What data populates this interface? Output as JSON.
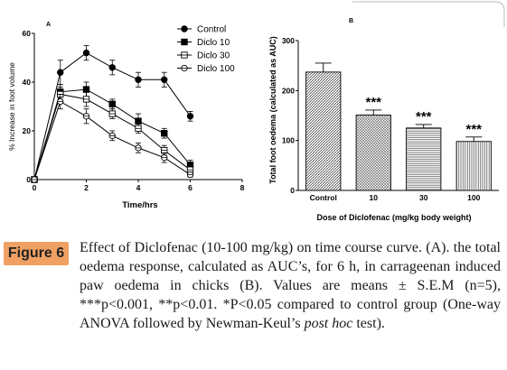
{
  "chart_data": [
    {
      "type": "line",
      "panel_label": "A",
      "xlabel": "Time/hrs",
      "ylabel": "% Increase in foot volume",
      "xlim": [
        0,
        8
      ],
      "ylim": [
        0,
        60
      ],
      "x_ticks": [
        0,
        2,
        4,
        6,
        8
      ],
      "y_ticks": [
        0,
        20,
        40,
        60
      ],
      "x": [
        0,
        1,
        2,
        3,
        4,
        5,
        6
      ],
      "series": [
        {
          "name": "Control",
          "marker": "filled-circle",
          "values": [
            0,
            44,
            52,
            46,
            41,
            41,
            26
          ],
          "errors": [
            0,
            5,
            3,
            3,
            3,
            3,
            2
          ]
        },
        {
          "name": "Diclo 10",
          "marker": "filled-square",
          "values": [
            0,
            36,
            37,
            31,
            24,
            19,
            6
          ],
          "errors": [
            0,
            3,
            3,
            2,
            3,
            2,
            2
          ]
        },
        {
          "name": "Diclo 30",
          "marker": "open-square",
          "values": [
            0,
            35,
            33,
            27,
            21,
            12,
            4
          ],
          "errors": [
            0,
            3,
            3,
            2,
            2,
            2,
            1
          ]
        },
        {
          "name": "Diclo 100",
          "marker": "open-circle",
          "values": [
            0,
            32,
            26,
            18,
            13,
            9,
            2
          ],
          "errors": [
            0,
            3,
            3,
            2,
            2,
            2,
            1
          ]
        }
      ]
    },
    {
      "type": "bar",
      "panel_label": "B",
      "xlabel": "Dose of Diclofenac (mg/kg body weight)",
      "ylabel": "Total foot oedema (calculated as AUC)",
      "ylim": [
        0,
        300
      ],
      "y_ticks": [
        0,
        100,
        200,
        300
      ],
      "categories": [
        "Control",
        "10",
        "30",
        "100"
      ],
      "values": [
        237,
        151,
        125,
        98
      ],
      "errors": [
        18,
        10,
        7,
        9
      ],
      "annotations": [
        "",
        "***",
        "***",
        "***"
      ]
    }
  ],
  "caption": {
    "label": "Figure 6",
    "pre": "Effect of Diclofenac (10-100 mg/kg) on time course curve. (A). the total oedema response, calculated as AUC’s, for 6 h, in carrageenan induced paw oedema in chicks (B). Values are means ± S.E.M (n=5), ***p<0.001, **p<0.01. *P<0.05 compared to control group (One-way ANOVA followed by Newman-Keul’s ",
    "italic": "post hoc",
    "post": " test)."
  }
}
